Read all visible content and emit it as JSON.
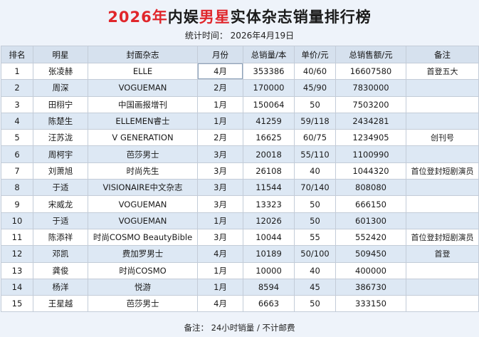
{
  "title": {
    "year": "2026年",
    "part1": "内娱",
    "part2": "男星",
    "part3": "实体杂志销量排行榜"
  },
  "stat_line": "统计时间：  2026年4月19日",
  "columns": [
    "排名",
    "明星",
    "封面杂志",
    "月份",
    "总销量/本",
    "单价/元",
    "总销售额/元",
    "备注"
  ],
  "rows": [
    [
      "1",
      "张凌赫",
      "ELLE",
      "4月",
      "353386",
      "40/60",
      "16607580",
      "首登五大"
    ],
    [
      "2",
      "周深",
      "VOGUEMAN",
      "2月",
      "170000",
      "45/90",
      "7830000",
      ""
    ],
    [
      "3",
      "田栩宁",
      "中国画报增刊",
      "1月",
      "150064",
      "50",
      "7503200",
      ""
    ],
    [
      "4",
      "陈楚生",
      "ELLEMEN睿士",
      "1月",
      "41259",
      "59/118",
      "2434281",
      ""
    ],
    [
      "5",
      "汪苏泷",
      "V GENERATION",
      "2月",
      "16625",
      "60/75",
      "1234905",
      "创刊号"
    ],
    [
      "6",
      "周柯宇",
      "芭莎男士",
      "3月",
      "20018",
      "55/110",
      "1100990",
      ""
    ],
    [
      "7",
      "刘萧旭",
      "时尚先生",
      "3月",
      "26108",
      "40",
      "1044320",
      "首位登封短剧演员"
    ],
    [
      "8",
      "于适",
      "VISIONAIRE中文杂志",
      "3月",
      "11544",
      "70/140",
      "808080",
      ""
    ],
    [
      "9",
      "宋威龙",
      "VOGUEMAN",
      "3月",
      "13323",
      "50",
      "666150",
      ""
    ],
    [
      "10",
      "于适",
      "VOGUEMAN",
      "1月",
      "12026",
      "50",
      "601300",
      ""
    ],
    [
      "11",
      "陈添祥",
      "时尚COSMO BeautyBible",
      "3月",
      "10044",
      "55",
      "552420",
      "首位登封短剧演员"
    ],
    [
      "12",
      "邓凯",
      "费加罗男士",
      "4月",
      "10189",
      "50/100",
      "509450",
      "首登"
    ],
    [
      "13",
      "龚俊",
      "时尚COSMO",
      "1月",
      "10000",
      "40",
      "400000",
      ""
    ],
    [
      "14",
      "杨洋",
      "悦游",
      "1月",
      "8594",
      "45",
      "386730",
      ""
    ],
    [
      "15",
      "王星越",
      "芭莎男士",
      "4月",
      "6663",
      "50",
      "333150",
      ""
    ]
  ],
  "footer": "备注：  24小时销量 / 不计邮费",
  "colors": {
    "accent_red": "#e0262b",
    "header_bg": "#d6e1ee",
    "row_alt": "#dde8f4"
  }
}
